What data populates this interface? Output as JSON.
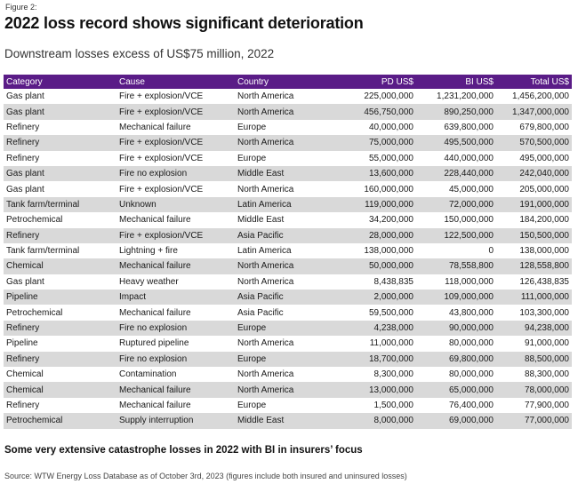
{
  "figure_label": "Figure 2:",
  "title": "2022 loss record shows significant deterioration",
  "subtitle": "Downstream losses excess of US$75 million, 2022",
  "table": {
    "headers": {
      "category": "Category",
      "cause": "Cause",
      "country": "Country",
      "pd": "PD US$",
      "bi": "BI US$",
      "total": "Total US$"
    },
    "rows": [
      [
        "Gas plant",
        "Fire + explosion/VCE",
        "North America",
        "225,000,000",
        "1,231,200,000",
        "1,456,200,000"
      ],
      [
        "Gas plant",
        "Fire + explosion/VCE",
        "North America",
        "456,750,000",
        "890,250,000",
        "1,347,000,000"
      ],
      [
        "Refinery",
        "Mechanical failure",
        "Europe",
        "40,000,000",
        "639,800,000",
        "679,800,000"
      ],
      [
        "Refinery",
        "Fire + explosion/VCE",
        "North America",
        "75,000,000",
        "495,500,000",
        "570,500,000"
      ],
      [
        "Refinery",
        "Fire + explosion/VCE",
        "Europe",
        "55,000,000",
        "440,000,000",
        "495,000,000"
      ],
      [
        "Gas plant",
        "Fire no explosion",
        "Middle East",
        "13,600,000",
        "228,440,000",
        "242,040,000"
      ],
      [
        "Gas plant",
        "Fire + explosion/VCE",
        "North America",
        "160,000,000",
        "45,000,000",
        "205,000,000"
      ],
      [
        "Tank farm/terminal",
        "Unknown",
        "Latin America",
        "119,000,000",
        "72,000,000",
        "191,000,000"
      ],
      [
        "Petrochemical",
        "Mechanical failure",
        "Middle East",
        "34,200,000",
        "150,000,000",
        "184,200,000"
      ],
      [
        "Refinery",
        "Fire + explosion/VCE",
        "Asia Pacific",
        "28,000,000",
        "122,500,000",
        "150,500,000"
      ],
      [
        "Tank farm/terminal",
        "Lightning + fire",
        "Latin America",
        "138,000,000",
        "0",
        "138,000,000"
      ],
      [
        "Chemical",
        "Mechanical failure",
        "North America",
        "50,000,000",
        "78,558,800",
        "128,558,800"
      ],
      [
        "Gas plant",
        "Heavy weather",
        "North America",
        "8,438,835",
        "118,000,000",
        "126,438,835"
      ],
      [
        "Pipeline",
        "Impact",
        "Asia Pacific",
        "2,000,000",
        "109,000,000",
        "111,000,000"
      ],
      [
        "Petrochemical",
        "Mechanical failure",
        "Asia Pacific",
        "59,500,000",
        "43,800,000",
        "103,300,000"
      ],
      [
        "Refinery",
        "Fire no explosion",
        "Europe",
        "4,238,000",
        "90,000,000",
        "94,238,000"
      ],
      [
        "Pipeline",
        "Ruptured pipeline",
        "North America",
        "11,000,000",
        "80,000,000",
        "91,000,000"
      ],
      [
        "Refinery",
        "Fire no explosion",
        "Europe",
        "18,700,000",
        "69,800,000",
        "88,500,000"
      ],
      [
        "Chemical",
        "Contamination",
        "North America",
        "8,300,000",
        "80,000,000",
        "88,300,000"
      ],
      [
        "Chemical",
        "Mechanical failure",
        "North America",
        "13,000,000",
        "65,000,000",
        "78,000,000"
      ],
      [
        "Refinery",
        "Mechanical failure",
        "Europe",
        "1,500,000",
        "76,400,000",
        "77,900,000"
      ],
      [
        "Petrochemical",
        "Supply interruption",
        "Middle East",
        "8,000,000",
        "69,000,000",
        "77,000,000"
      ]
    ]
  },
  "footnote": "Some very extensive catastrophe losses in 2022 with BI in insurers’ focus",
  "source": "Source: WTW Energy Loss Database as of October 3rd, 2023 (figures include both insured and uninsured losses)",
  "colors": {
    "header_bg": "#5a1c87",
    "row_alt": "#d9d9d9"
  }
}
